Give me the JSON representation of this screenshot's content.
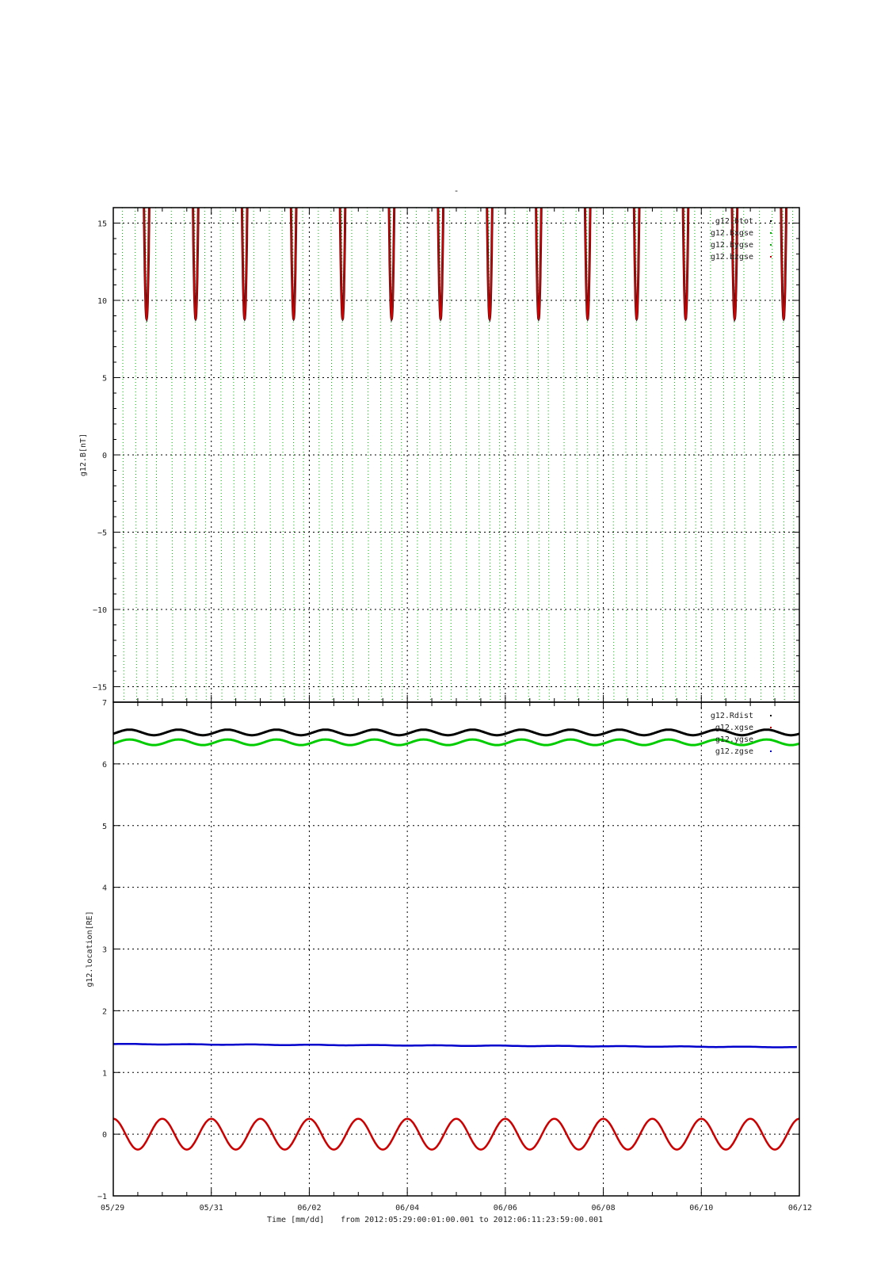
{
  "title": "-",
  "footer": {
    "xlabel": "Time [mm/dd]",
    "range_text": "from 2012:05:29:00:01:00.001  to  2012:06:11:23:59:00.001"
  },
  "chart_data": [
    {
      "type": "line",
      "ylabel": "g12.B[nT]",
      "ylim": [
        -16,
        16
      ],
      "yticks": [
        15,
        10,
        5,
        0,
        -5,
        -10,
        -15
      ],
      "xlim": [
        "05/29",
        "06/12"
      ],
      "xticks": [
        "05/29",
        "05/31",
        "06/02",
        "06/04",
        "06/06",
        "06/08",
        "06/10",
        "06/12"
      ],
      "grid": true,
      "legend_position": "top-right",
      "series": [
        {
          "name": "g12.btot",
          "color": "#000000",
          "cycle_min": 8.8,
          "period_days": 1.0,
          "first_min_day": 0.68
        },
        {
          "name": "g12.bxgse",
          "color": "#00b000",
          "note_style": "dotted-spikes"
        },
        {
          "name": "g12.bygse",
          "color": "#00b000"
        },
        {
          "name": "g12.bzgse",
          "color": "#cc0000",
          "cycle_min": 8.8,
          "period_days": 1.0,
          "first_min_day": 0.68
        }
      ]
    },
    {
      "type": "line",
      "ylabel": "g12.location[RE]",
      "ylim": [
        -1,
        7
      ],
      "yticks": [
        7,
        6,
        5,
        4,
        3,
        2,
        1,
        0,
        -1
      ],
      "xlim": [
        "05/29",
        "06/12"
      ],
      "xticks": [
        "05/29",
        "05/31",
        "06/02",
        "06/04",
        "06/06",
        "06/08",
        "06/10",
        "06/12"
      ],
      "grid": true,
      "legend_position": "top-right",
      "series": [
        {
          "name": "g12.Rdist",
          "color": "#000000",
          "mean": 6.51,
          "amplitude": 0.045,
          "period_days": 1.0
        },
        {
          "name": "g12.xgse",
          "color": "#cc0000",
          "mean": 0.0,
          "amplitude": 0.25,
          "period_days": 1.0
        },
        {
          "name": "g12.ygse",
          "color": "#00cc00",
          "mean": 6.35,
          "amplitude": 0.045,
          "period_days": 1.0
        },
        {
          "name": "g12.zgse",
          "color": "#0000cc",
          "start": 1.46,
          "end": 1.41
        }
      ]
    }
  ]
}
